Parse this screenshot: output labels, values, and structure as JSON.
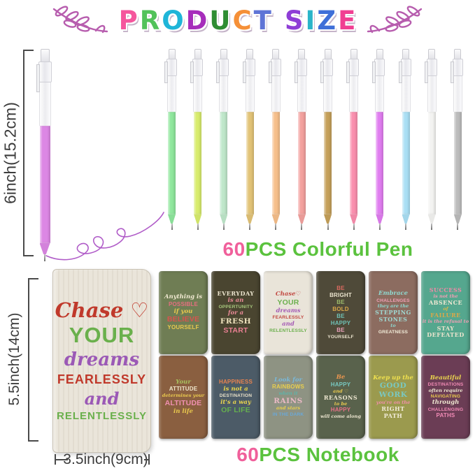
{
  "title": {
    "text": "PRODUCT SIZE",
    "letters": [
      {
        "ch": "P",
        "color": "#f5569d"
      },
      {
        "ch": "R",
        "color": "#52c25a"
      },
      {
        "ch": "O",
        "color": "#1fb5d8"
      },
      {
        "ch": "D",
        "color": "#a62dbb"
      },
      {
        "ch": "U",
        "color": "#2f8d33"
      },
      {
        "ch": "C",
        "color": "#f59038"
      },
      {
        "ch": "T",
        "color": "#5f74d6"
      },
      {
        "ch": " ",
        "color": ""
      },
      {
        "ch": "S",
        "color": "#8e3ed6"
      },
      {
        "ch": "I",
        "color": "#2ab5c9"
      },
      {
        "ch": "Z",
        "color": "#3f6fd8"
      },
      {
        "ch": "E",
        "color": "#f03f92"
      }
    ]
  },
  "decorations": {
    "branch_color": "#b75dae"
  },
  "pen_section": {
    "dimension_label": "6inch(15.2cm)",
    "featured_pen_color": "#dc87e4",
    "ink_squiggle_color": "#b05cc8",
    "pen_colors": [
      "#8fe79d",
      "#d8ec6c",
      "#bfe7ca",
      "#e2c377",
      "#f6bf8b",
      "#f3a19e",
      "#c5a05a",
      "#fa8fae",
      "#e07df0",
      "#aadff4",
      "#f3f3f1",
      "#bcbcbc"
    ],
    "caption": {
      "count": "60",
      "label": "PCS Colorful Pen",
      "count_color": "#f0609b",
      "label_color": "#5bc23e"
    }
  },
  "notebook_section": {
    "height_label": "5.5inch(14cm)",
    "width_label": "3.5inch(9cm)",
    "featured_notebook": {
      "bg": "#eae5da",
      "lines": [
        {
          "t": "Chase ♡",
          "c": "#c0392b",
          "s": "script",
          "fs": 29
        },
        {
          "t": "YOUR",
          "c": "#6ab04c",
          "s": "bold",
          "fs": 31
        },
        {
          "t": "dreams",
          "c": "#9b59b6",
          "s": "script",
          "fs": 26
        },
        {
          "t": "FEARLESSLY",
          "c": "#c0392b",
          "s": "bold",
          "fs": 18
        },
        {
          "t": "and",
          "c": "#9b59b6",
          "s": "script",
          "fs": 24
        },
        {
          "t": "RELENTLESSLY",
          "c": "#6ab04c",
          "s": "bold",
          "fs": 15
        }
      ]
    },
    "covers": [
      {
        "bg": "#6f7d54",
        "lines": [
          {
            "t": "Anything is",
            "c": "#efe8d0",
            "s": "script"
          },
          {
            "t": "POSSIBLE",
            "c": "#e56e7f",
            "s": "bold"
          },
          {
            "t": "if you",
            "c": "#e9c94e",
            "s": "script"
          },
          {
            "t": "BELIEVE",
            "c": "#d9534f",
            "s": "bold lg"
          },
          {
            "t": "YOURSELF",
            "c": "#e9c94e",
            "s": "bold"
          }
        ]
      },
      {
        "bg": "#4a4530",
        "lines": [
          {
            "t": "EVERYDAY",
            "c": "#ece5cf",
            "s": "serif"
          },
          {
            "t": "is an",
            "c": "#e98a96",
            "s": "script"
          },
          {
            "t": "OPPERTUNITY",
            "c": "#a8c87e",
            "s": "bold sm"
          },
          {
            "t": "for a",
            "c": "#e98a96",
            "s": "script"
          },
          {
            "t": "FRESH",
            "c": "#efe3be",
            "s": "serif lg"
          },
          {
            "t": "START",
            "c": "#e87f92",
            "s": "bold lg"
          }
        ]
      },
      {
        "bg": "#e9e4d9",
        "lines": [
          {
            "t": "Chase♡",
            "c": "#c24a43",
            "s": "script"
          },
          {
            "t": "YOUR",
            "c": "#6cb04e",
            "s": "bold lg"
          },
          {
            "t": "dreams",
            "c": "#a55cb5",
            "s": "script"
          },
          {
            "t": "FEARLESSLY",
            "c": "#c24a43",
            "s": "bold sm"
          },
          {
            "t": "and",
            "c": "#a55cb5",
            "s": "script"
          },
          {
            "t": "RELENTLESSLY",
            "c": "#6cb04e",
            "s": "bold sm"
          }
        ]
      },
      {
        "bg": "#4f4a39",
        "lines": [
          {
            "t": "BE",
            "c": "#d96a5f",
            "s": "bold"
          },
          {
            "t": "BRIGHT",
            "c": "#ece5cf",
            "s": "bold"
          },
          {
            "t": "BE",
            "c": "#9dba6a",
            "s": "bold"
          },
          {
            "t": "BOLD",
            "c": "#d9a84a",
            "s": "bold"
          },
          {
            "t": "BE",
            "c": "#6fc0b5",
            "s": "bold"
          },
          {
            "t": "HAPPY",
            "c": "#6fc0b5",
            "s": "bold"
          },
          {
            "t": "BE",
            "c": "#e8a0b8",
            "s": "bold"
          },
          {
            "t": "YOURSELF",
            "c": "#ece5cf",
            "s": "bold sm"
          }
        ]
      },
      {
        "bg": "#8c6c60",
        "lines": [
          {
            "t": "Embrace",
            "c": "#8fd8cf",
            "s": "script"
          },
          {
            "t": "CHALLENGES",
            "c": "#f0a0b5",
            "s": "bold sm"
          },
          {
            "t": "they are the",
            "c": "#8fd8cf",
            "s": "script sm"
          },
          {
            "t": "STEPPING",
            "c": "#9fd8d2",
            "s": "serif"
          },
          {
            "t": "STONES",
            "c": "#9fd8d2",
            "s": "serif"
          },
          {
            "t": "to",
            "c": "#8fd8cf",
            "s": "script sm"
          },
          {
            "t": "GREATNESS",
            "c": "#f2ecd9",
            "s": "bold sm"
          }
        ]
      },
      {
        "bg": "#55a78e",
        "lines": [
          {
            "t": "SUCCESS",
            "c": "#f08aa8",
            "s": "serif"
          },
          {
            "t": "is not the",
            "c": "#ef9fb5",
            "s": "script sm"
          },
          {
            "t": "ABSENCE",
            "c": "#efe8d2",
            "s": "serif"
          },
          {
            "t": "of",
            "c": "#d9b84a",
            "s": "script sm"
          },
          {
            "t": "FAILURE",
            "c": "#d9a84a",
            "s": "serif"
          },
          {
            "t": "it is the refusal to",
            "c": "#ef9fb5",
            "s": "script sm"
          },
          {
            "t": "STAY",
            "c": "#eae3cd",
            "s": "serif"
          },
          {
            "t": "DEFEATED",
            "c": "#eae3cd",
            "s": "serif"
          }
        ]
      },
      {
        "bg": "#8a5f40",
        "lines": [
          {
            "t": "Your",
            "c": "#a8c05e",
            "s": "script"
          },
          {
            "t": "ATTITUDE",
            "c": "#efe6cc",
            "s": "bold"
          },
          {
            "t": "determines your",
            "c": "#e9c94e",
            "s": "script sm"
          },
          {
            "t": "ALTITUDE",
            "c": "#ef8fb0",
            "s": "bold lg"
          },
          {
            "t": "in life",
            "c": "#e9c94e",
            "s": "script"
          }
        ]
      },
      {
        "bg": "#4c5b67",
        "lines": [
          {
            "t": "HAPPINESS",
            "c": "#e8834f",
            "s": "bold"
          },
          {
            "t": "is not a",
            "c": "#e9d44e",
            "s": "script"
          },
          {
            "t": "DESTINATION",
            "c": "#e8e0c8",
            "s": "bold sm"
          },
          {
            "t": "it's a way",
            "c": "#e9d44e",
            "s": "script"
          },
          {
            "t": "OF LIFE",
            "c": "#66b04e",
            "s": "bold lg"
          }
        ]
      },
      {
        "bg": "#8e9383",
        "lines": [
          {
            "t": "Look for",
            "c": "#7ab8d8",
            "s": "script"
          },
          {
            "t": "RAINBOWS",
            "c": "#e9cf4e",
            "s": "bold"
          },
          {
            "t": "when it",
            "c": "#5fb3a8",
            "s": "script sm"
          },
          {
            "t": "RAINS",
            "c": "#e8b8c4",
            "s": "serif lg"
          },
          {
            "t": "and stars",
            "c": "#e9cf4e",
            "s": "script sm"
          },
          {
            "t": "IN THE DARK",
            "c": "#6aa8d8",
            "s": "bold sm"
          }
        ]
      },
      {
        "bg": "#59624c",
        "lines": [
          {
            "t": "Be",
            "c": "#e8954f",
            "s": "script"
          },
          {
            "t": "HAPPY",
            "c": "#78c8c0",
            "s": "bold"
          },
          {
            "t": "and ♡",
            "c": "#e9c94e",
            "s": "script sm"
          },
          {
            "t": "REASONS",
            "c": "#ece5cf",
            "s": "serif"
          },
          {
            "t": "to be",
            "c": "#e9c94e",
            "s": "script sm"
          },
          {
            "t": "HAPPY",
            "c": "#e87088",
            "s": "bold"
          },
          {
            "t": "will come along",
            "c": "#ece5cf",
            "s": "script sm"
          }
        ]
      },
      {
        "bg": "#9b9a4e",
        "lines": [
          {
            "t": "Keep up the",
            "c": "#efe04e",
            "s": "script"
          },
          {
            "t": "GOOD",
            "c": "#7ac8c0",
            "s": "serif lg"
          },
          {
            "t": "WORK",
            "c": "#7ac8c0",
            "s": "serif lg"
          },
          {
            "t": "you're on the",
            "c": "#ef8fa8",
            "s": "script sm"
          },
          {
            "t": "RIGHT",
            "c": "#f2ecd9",
            "s": "serif"
          },
          {
            "t": "PATH",
            "c": "#f2ecd9",
            "s": "serif"
          }
        ]
      },
      {
        "bg": "#6b3d55",
        "lines": [
          {
            "t": "Beautiful",
            "c": "#e9d44e",
            "s": "script"
          },
          {
            "t": "DESTINATIONS",
            "c": "#f08ab5",
            "s": "bold sm"
          },
          {
            "t": "often require",
            "c": "#eee6d0",
            "s": "script sm"
          },
          {
            "t": "NAVIGATING",
            "c": "#e9c94e",
            "s": "bold sm"
          },
          {
            "t": "through",
            "c": "#eee6d0",
            "s": "script"
          },
          {
            "t": "CHALLENGING",
            "c": "#f08ab5",
            "s": "bold sm"
          },
          {
            "t": "PATHS",
            "c": "#f08ab5",
            "s": "bold"
          }
        ]
      }
    ],
    "caption": {
      "count": "60",
      "label": "PCS Notebook",
      "count_color": "#f0609b",
      "label_color": "#5bc23e"
    }
  }
}
